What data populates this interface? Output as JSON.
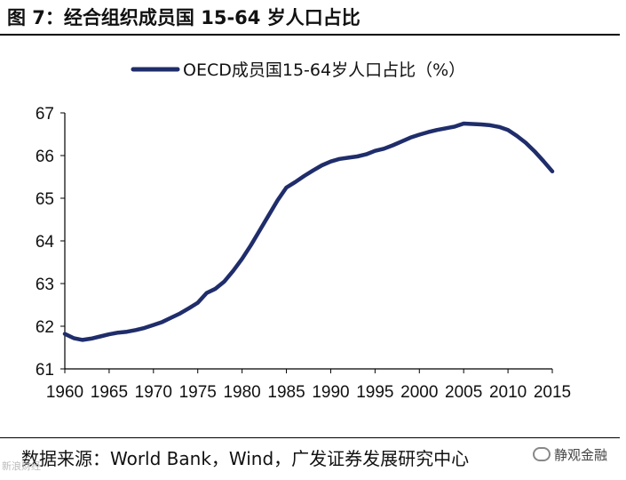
{
  "header": {
    "title": "图 7：经合组织成员国 15-64 岁人口占比"
  },
  "footer": {
    "source": "数据来源：World Bank，Wind，广发证券发展研究中心",
    "watermark": "静观金融",
    "watermark_left": "新浪财经"
  },
  "colors": {
    "series": "#1f2d6b",
    "axis": "#000000"
  },
  "chart_data": {
    "type": "line",
    "title": "",
    "xlabel": "",
    "ylabel": "",
    "legend_position": "top-center",
    "grid": false,
    "xlim": [
      1960,
      2015
    ],
    "ylim": [
      61,
      67
    ],
    "x_ticks": [
      1960,
      1965,
      1970,
      1975,
      1980,
      1985,
      1990,
      1995,
      2000,
      2005,
      2010,
      2015
    ],
    "y_ticks": [
      61,
      62,
      63,
      64,
      65,
      66,
      67
    ],
    "series": [
      {
        "name": "OECD成员国15-64岁人口占比（%）",
        "x": [
          1960,
          1961,
          1962,
          1963,
          1964,
          1965,
          1966,
          1967,
          1968,
          1969,
          1970,
          1971,
          1972,
          1973,
          1974,
          1975,
          1976,
          1977,
          1978,
          1979,
          1980,
          1981,
          1982,
          1983,
          1984,
          1985,
          1986,
          1987,
          1988,
          1989,
          1990,
          1991,
          1992,
          1993,
          1994,
          1995,
          1996,
          1997,
          1998,
          1999,
          2000,
          2001,
          2002,
          2003,
          2004,
          2005,
          2006,
          2007,
          2008,
          2009,
          2010,
          2011,
          2012,
          2013,
          2014,
          2015
        ],
        "values": [
          61.82,
          61.72,
          61.68,
          61.71,
          61.76,
          61.81,
          61.85,
          61.87,
          61.91,
          61.96,
          62.03,
          62.1,
          62.2,
          62.3,
          62.42,
          62.55,
          62.78,
          62.88,
          63.05,
          63.3,
          63.58,
          63.9,
          64.25,
          64.6,
          64.95,
          65.25,
          65.38,
          65.52,
          65.65,
          65.77,
          65.86,
          65.92,
          65.95,
          65.98,
          66.03,
          66.11,
          66.16,
          66.24,
          66.33,
          66.42,
          66.49,
          66.55,
          66.6,
          66.64,
          66.68,
          66.75,
          66.74,
          66.73,
          66.71,
          66.67,
          66.6,
          66.46,
          66.3,
          66.1,
          65.87,
          65.63
        ]
      }
    ]
  }
}
